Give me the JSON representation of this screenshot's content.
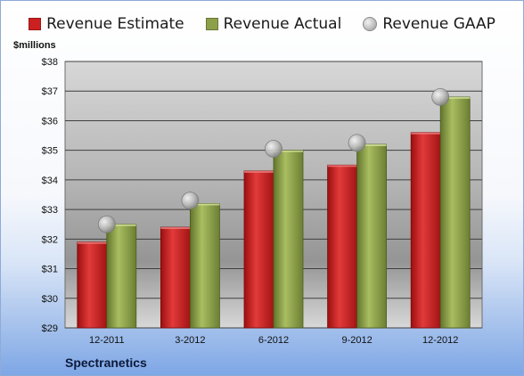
{
  "chart_data": {
    "type": "bar",
    "ylabel": "$millions",
    "categories": [
      "12-2011",
      "3-2012",
      "6-2012",
      "9-2012",
      "12-2012"
    ],
    "ylim": [
      29,
      38
    ],
    "yticks": [
      "$29",
      "$30",
      "$31",
      "$32",
      "$33",
      "$34",
      "$35",
      "$36",
      "$37",
      "$38"
    ],
    "grid": true,
    "legend_position": "top",
    "series": [
      {
        "name": "Revenue Estimate",
        "kind": "bar",
        "color": "#cc1f1f",
        "values": [
          31.9,
          32.4,
          34.3,
          34.5,
          35.6
        ]
      },
      {
        "name": "Revenue Actual",
        "kind": "bar",
        "color": "#8ca04a",
        "values": [
          32.5,
          33.2,
          35.0,
          35.2,
          36.8
        ]
      },
      {
        "name": "Revenue GAAP",
        "kind": "marker",
        "color": "#a8a8a8",
        "values": [
          32.5,
          33.3,
          35.05,
          35.25,
          36.8
        ]
      }
    ],
    "footer": "Spectranetics"
  }
}
